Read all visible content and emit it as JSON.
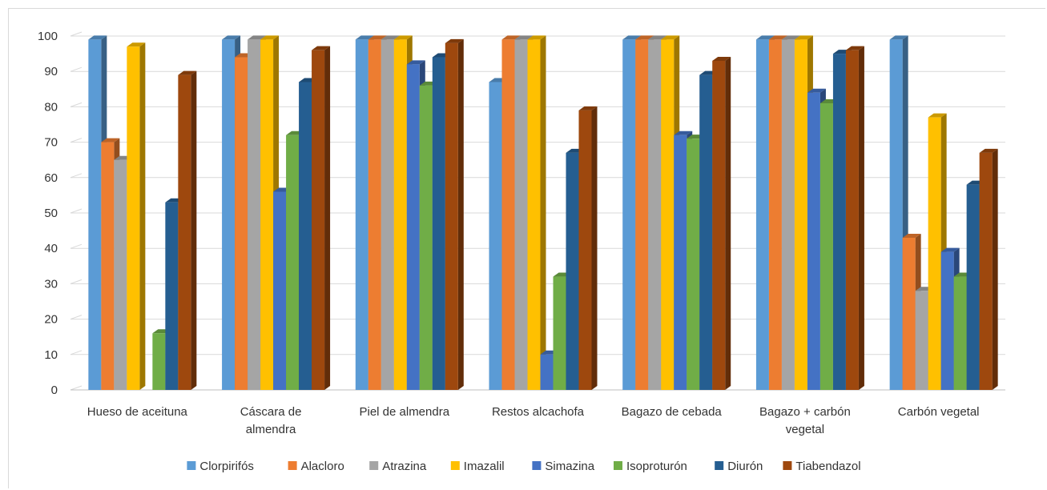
{
  "chart_data": {
    "type": "bar",
    "title": "",
    "xlabel": "",
    "ylabel": "",
    "ylim": [
      0,
      100
    ],
    "yticks": [
      0,
      10,
      20,
      30,
      40,
      50,
      60,
      70,
      80,
      90,
      100
    ],
    "grid": true,
    "legend_position": "bottom",
    "categories": [
      [
        "Hueso de aceituna"
      ],
      [
        "Cáscara de",
        "almendra"
      ],
      [
        "Piel de almendra"
      ],
      [
        "Restos alcachofa"
      ],
      [
        "Bagazo de cebada"
      ],
      [
        "Bagazo + carbón",
        "vegetal"
      ],
      [
        "Carbón vegetal"
      ]
    ],
    "series": [
      {
        "name": "Clorpirifós",
        "color": "#5b9bd5",
        "values": [
          99,
          99,
          99,
          87,
          99,
          99,
          99
        ]
      },
      {
        "name": "Alacloro",
        "color": "#ed7d31",
        "values": [
          70,
          94,
          99,
          99,
          99,
          99,
          43
        ]
      },
      {
        "name": "Atrazina",
        "color": "#a5a5a5",
        "values": [
          65,
          99,
          99,
          99,
          99,
          99,
          28
        ]
      },
      {
        "name": "Imazalil",
        "color": "#ffc000",
        "values": [
          97,
          99,
          99,
          99,
          99,
          99,
          77
        ]
      },
      {
        "name": "Simazina",
        "color": "#4472c4",
        "values": [
          0,
          56,
          92,
          10,
          72,
          84,
          39
        ]
      },
      {
        "name": "Isoproturón",
        "color": "#70ad47",
        "values": [
          16,
          72,
          86,
          32,
          71,
          81,
          32
        ]
      },
      {
        "name": "Diurón",
        "color": "#255e91",
        "values": [
          53,
          87,
          94,
          67,
          89,
          95,
          58
        ]
      },
      {
        "name": "Tiabendazol",
        "color": "#9e480e",
        "values": [
          89,
          96,
          98,
          79,
          93,
          96,
          67
        ]
      }
    ]
  }
}
